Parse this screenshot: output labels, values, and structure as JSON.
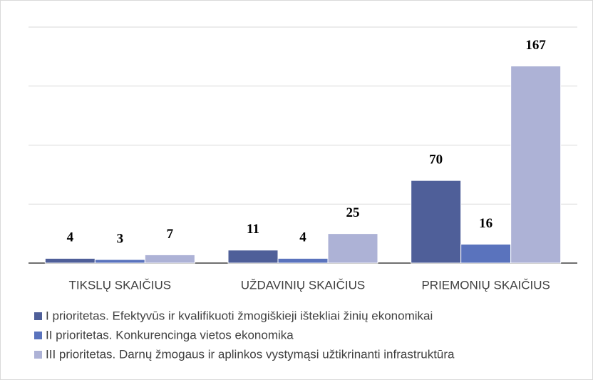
{
  "chart_data": {
    "type": "bar",
    "categories": [
      "TIKSLŲ SKAIČIUS",
      "UŽDAVINIŲ SKAIČIUS",
      "PRIEMONIŲ SKAIČIUS"
    ],
    "series": [
      {
        "name": "I prioritetas. Efektyvūs ir kvalifikuoti žmogiškieji ištekliai žinių ekonomikai",
        "color": "#4f5f99",
        "values": [
          4,
          11,
          70
        ]
      },
      {
        "name": "II prioritetas. Konkurencinga vietos ekonomika",
        "color": "#5a73bd",
        "values": [
          3,
          4,
          16
        ]
      },
      {
        "name": "III prioritetas. Darnų žmogaus ir aplinkos vystymąsi užtikrinanti infrastruktūra",
        "color": "#adb2d6",
        "values": [
          7,
          25,
          167
        ]
      }
    ],
    "ylim": [
      0,
      200
    ],
    "yticks": [
      0,
      50,
      100,
      150,
      200
    ],
    "grid": true,
    "legend": "bottom"
  }
}
